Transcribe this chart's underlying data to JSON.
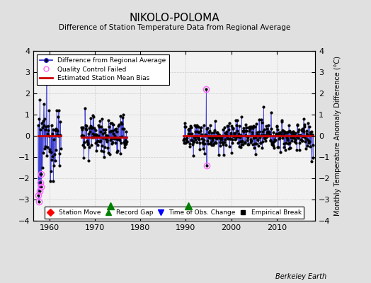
{
  "title": "NIKOLO-POLOMA",
  "subtitle": "Difference of Station Temperature Data from Regional Average",
  "ylabel_right": "Monthly Temperature Anomaly Difference (°C)",
  "credit": "Berkeley Earth",
  "ylim": [
    -4,
    4
  ],
  "xlim": [
    1956.5,
    2018.5
  ],
  "yticks": [
    -4,
    -3,
    -2,
    -1,
    0,
    1,
    2,
    3,
    4
  ],
  "xticks": [
    1960,
    1970,
    1980,
    1990,
    2000,
    2010
  ],
  "bg_color": "#e0e0e0",
  "plot_bg_color": "#f2f2f2",
  "line_color": "#2222cc",
  "bias_color": "#cc0000",
  "qc_color": "#ff66ff",
  "seed": 12345,
  "segments": [
    {
      "x_start": 1957.5,
      "x_end": 1962.5,
      "std": 0.9
    },
    {
      "x_start": 1967.0,
      "x_end": 1977.0,
      "std": 0.45
    },
    {
      "x_start": 1989.5,
      "x_end": 2018.0,
      "std": 0.35
    }
  ],
  "record_gaps": [
    1973.5,
    1990.5
  ],
  "bias_segments": [
    {
      "x_start": 1957.5,
      "x_end": 1962.5,
      "bias": 0.0
    },
    {
      "x_start": 1967.0,
      "x_end": 1977.0,
      "bias": -0.05
    },
    {
      "x_start": 1989.5,
      "x_end": 2018.0,
      "bias": 0.0
    }
  ]
}
